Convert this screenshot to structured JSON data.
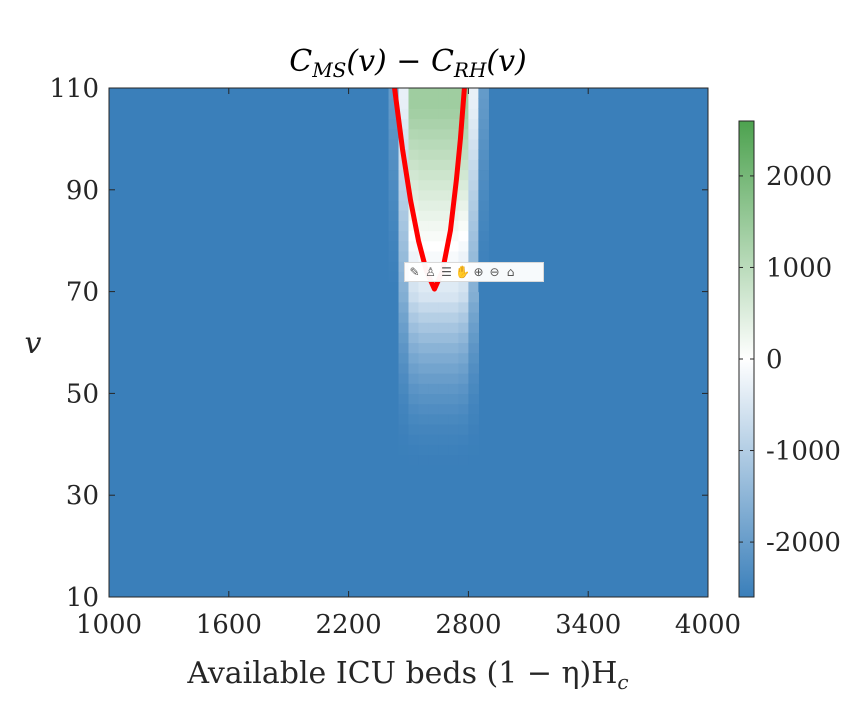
{
  "chart_data": {
    "type": "heatmap",
    "title_parts": [
      "C",
      "MS",
      "(v) − C",
      "RH",
      "(v)"
    ],
    "xlabel": "Available ICU beds (1 − η)H",
    "xlabel_sub": "c",
    "ylabel": "v",
    "xlim": [
      1000,
      4000
    ],
    "ylim": [
      10,
      110
    ],
    "xticks": [
      "1000",
      "1600",
      "2200",
      "2800",
      "3400",
      "4000"
    ],
    "yticks": [
      "10",
      "30",
      "50",
      "70",
      "90",
      "110"
    ],
    "colorbar": {
      "range": [
        -2600,
        2600
      ],
      "ticks": [
        "-2000",
        "-1000",
        "0",
        "1000",
        "2000"
      ],
      "colors": [
        "#3a7fba",
        "#ffffff",
        "#4da24f"
      ]
    },
    "field": {
      "background_value": -2600,
      "center_x": 2650,
      "half_width_top": 230,
      "half_width_bottom": 200,
      "onset_v": 35,
      "zero_contour_min_v": 70.5,
      "max_value_at_top": 1400
    },
    "zero_contour": {
      "color": "#ff0000",
      "x": [
        2430,
        2470,
        2510,
        2550,
        2590,
        2630,
        2670,
        2710,
        2740,
        2760,
        2780
      ],
      "y": [
        110,
        98,
        88,
        80,
        74,
        70.5,
        74,
        82,
        92,
        100,
        110
      ]
    }
  },
  "toolbar": {
    "icons": [
      "brush-icon",
      "data-tips-icon",
      "legend-icon",
      "pan-icon",
      "zoom-in-icon",
      "zoom-out-icon",
      "home-icon"
    ],
    "glyphs": [
      "✎",
      "♙",
      "☰",
      "✋",
      "⊕",
      "⊖",
      "⌂"
    ]
  }
}
